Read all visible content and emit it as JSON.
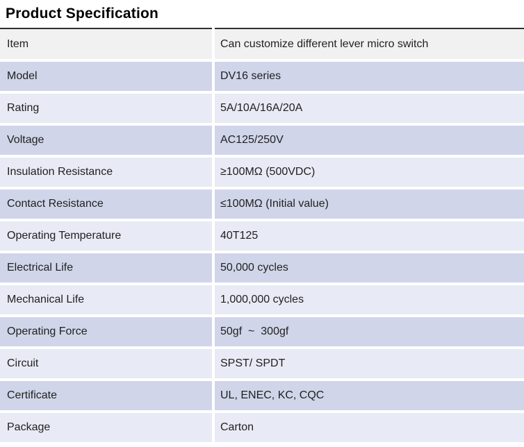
{
  "title": "Product Specification",
  "colors": {
    "title_text": "#000000",
    "rule": "#2e2e2e",
    "header_row_bg": "#f1f1f1",
    "row_light_bg": "#e8eaf5",
    "row_dark_bg": "#d0d5e9",
    "cell_text": "#212121",
    "gutter": "#ffffff"
  },
  "table": {
    "rows": [
      {
        "label": "Item",
        "value": "Can customize different lever micro switch"
      },
      {
        "label": "Model",
        "value": "DV16 series"
      },
      {
        "label": "Rating",
        "value": "5A/10A/16A/20A"
      },
      {
        "label": "Voltage",
        "value": "AC125/250V"
      },
      {
        "label": "Insulation Resistance",
        "value": "≥100MΩ (500VDC)"
      },
      {
        "label": "Contact Resistance",
        "value": "≤100MΩ (Initial value)"
      },
      {
        "label": "Operating Temperature",
        "value": "40T125"
      },
      {
        "label": "Electrical Life",
        "value": "50,000 cycles"
      },
      {
        "label": "Mechanical Life",
        "value": "1,000,000 cycles"
      },
      {
        "label": "Operating Force",
        "value": "50gf  ~  300gf"
      },
      {
        "label": "Circuit",
        "value": "SPST/ SPDT"
      },
      {
        "label": "Certificate",
        "value": "UL, ENEC, KC, CQC"
      },
      {
        "label": "Package",
        "value": "Carton"
      }
    ]
  }
}
